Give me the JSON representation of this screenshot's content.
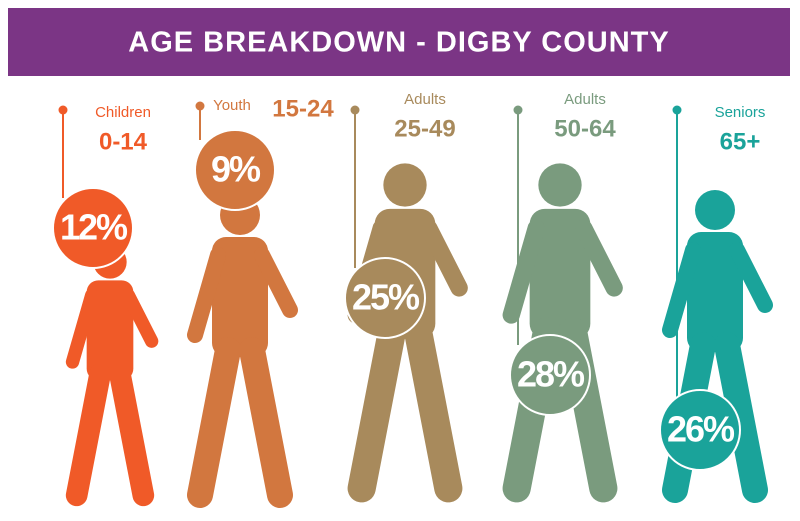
{
  "header": {
    "title": "AGE BREAKDOWN - DIGBY COUNTY"
  },
  "groups": [
    {
      "label": "Children",
      "range": "0-14",
      "share": "12%"
    },
    {
      "label": "Youth",
      "range": "15-24",
      "share": "9%"
    },
    {
      "label": "Adults",
      "range": "25-49",
      "share": "25%"
    },
    {
      "label": "Adults",
      "range": "50-64",
      "share": "28%"
    },
    {
      "label": "Seniors",
      "range": "65+",
      "share": "26%"
    }
  ]
}
